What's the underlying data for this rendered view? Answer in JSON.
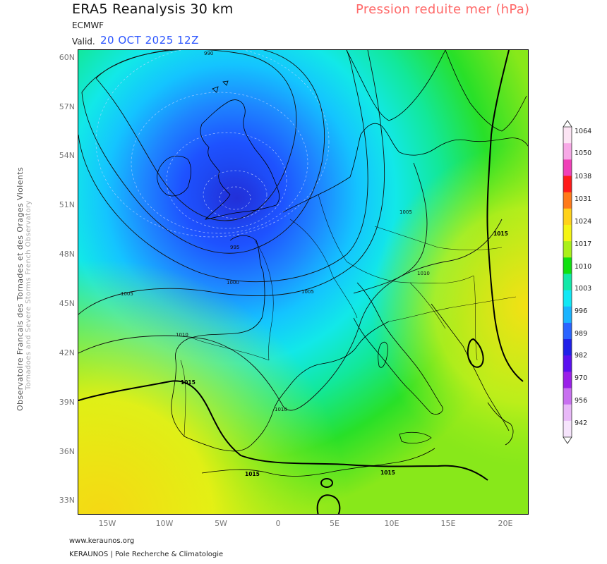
{
  "header": {
    "title": "ERA5 Reanalysis 30 km",
    "model": "ECMWF",
    "valid_label": "Valid.",
    "valid_time": "20 OCT 2025 12Z",
    "parameter": "Pression reduite mer (hPa)"
  },
  "sidebar": {
    "line1": "Observatoire Francais des Tornades et des Orages Violents",
    "line2": "Tornadoes and Severe Storms French Observatory"
  },
  "footer": {
    "url": "www.keraunos.org",
    "credit": "KERAUNOS | Pole Recherche & Climatologie"
  },
  "axes": {
    "lat_labels": [
      "60N",
      "57N",
      "54N",
      "51N",
      "48N",
      "45N",
      "42N",
      "39N",
      "36N",
      "33N"
    ],
    "lon_labels": [
      "15W",
      "10W",
      "5W",
      "0",
      "5E",
      "10E",
      "15E",
      "20E"
    ]
  },
  "isobars": [
    "990",
    "995",
    "1000",
    "1005",
    "1005",
    "1005",
    "1010",
    "1010",
    "1010",
    "1015",
    "1015",
    "1015",
    "1015"
  ],
  "colorbar": {
    "labels": [
      "1064",
      "1050",
      "1038",
      "1031",
      "1024",
      "1017",
      "1010",
      "1003",
      "996",
      "989",
      "982",
      "970",
      "956",
      "942"
    ],
    "colors": [
      "#fce4f4",
      "#f7a8e6",
      "#f040b8",
      "#ff1a1a",
      "#ff7a1a",
      "#ffd21a",
      "#f5f514",
      "#aaf01a",
      "#10e010",
      "#12e8a8",
      "#12e8f5",
      "#1ab4ff",
      "#2a64ff",
      "#2020e8",
      "#5a10f0",
      "#9a20e8",
      "#c870f0",
      "#e8b8f8",
      "#f6e4fc"
    ]
  },
  "map_colors": {
    "low_center": "#2a3ce0",
    "low_inner": "#1c68ff",
    "cyan": "#12e0f0",
    "green": "#10e040",
    "yellow_green": "#b4ee1a",
    "yellow": "#f5e814"
  }
}
